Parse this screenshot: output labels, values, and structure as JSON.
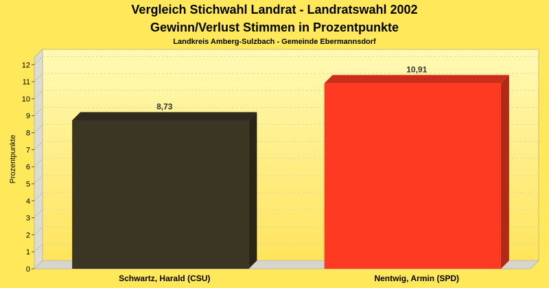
{
  "chart_data": {
    "type": "bar",
    "title": "Vergleich Stichwahl Landrat - Landratswahl 2002",
    "subtitle": "Gewinn/Verlust Stimmen in Prozentpunkte",
    "subsubtitle": "Landkreis Amberg-Sulzbach - Gemeinde Ebermannsdorf",
    "xlabel": "",
    "ylabel": "Prozentpunkte",
    "ylim": [
      0,
      12.9
    ],
    "yticks": [
      "0",
      "1",
      "2",
      "3",
      "4",
      "5",
      "6",
      "7",
      "8",
      "9",
      "10",
      "11",
      "12"
    ],
    "categories": [
      "Schwartz, Harald (CSU)",
      "Nentwig, Armin (SPD)"
    ],
    "values": [
      8.73,
      10.91
    ],
    "value_labels": [
      "8,73",
      "10,91"
    ],
    "colors": [
      "#3b3524",
      "#ff3a22"
    ],
    "grid": true,
    "legend": "none"
  },
  "colors": {
    "background": "#ffe85a",
    "plot_top": "#fff9b0",
    "plot_bottom": "#ffe35a"
  }
}
